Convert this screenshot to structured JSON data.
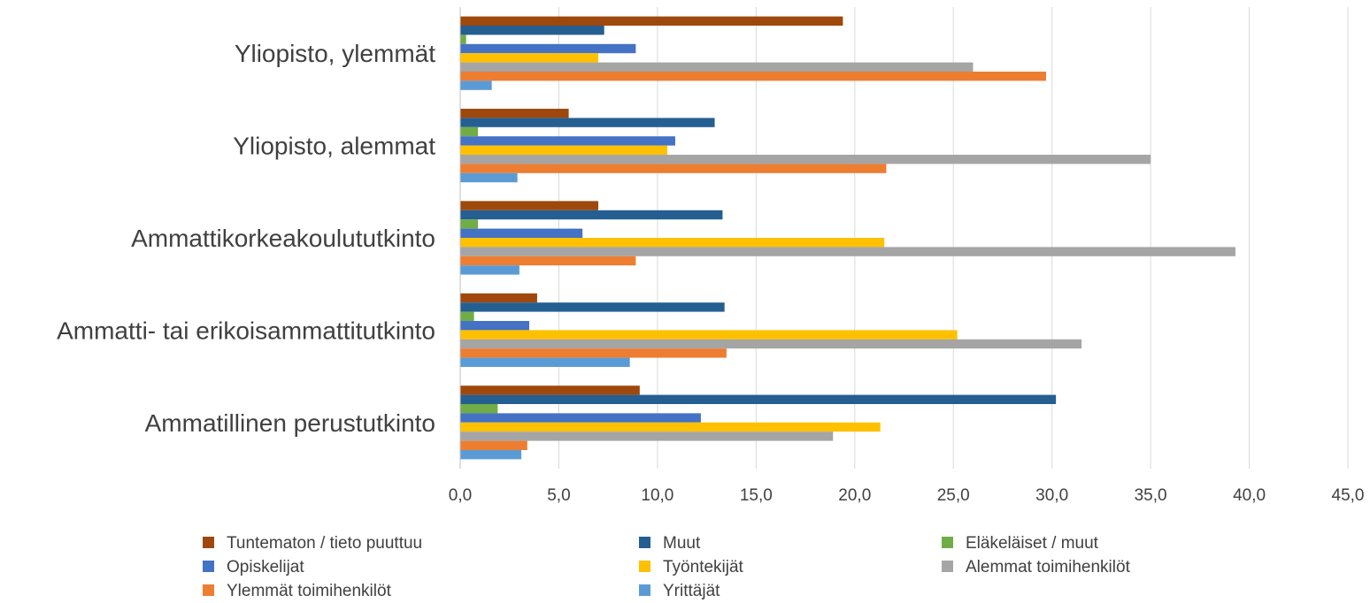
{
  "chart_data": {
    "type": "bar",
    "orientation": "horizontal",
    "title": "",
    "xlabel": "",
    "ylabel": "",
    "xlim": [
      0,
      45
    ],
    "x_ticks": [
      "0,0",
      "5,0",
      "10,0",
      "15,0",
      "20,0",
      "25,0",
      "30,0",
      "35,0",
      "40,0",
      "45,0"
    ],
    "grid": "vertical",
    "legend_placement": "bottom",
    "categories": [
      "Yliopisto, ylemmät",
      "Yliopisto, alemmat",
      "Ammattikorkeakoulututkinto",
      "Ammatti- tai erikoisammattitutkinto",
      "Ammatillinen perustutkinto"
    ],
    "series": [
      {
        "name": "Tuntematon / tieto puuttuu",
        "color": "#9E480E",
        "values": [
          19.4,
          5.5,
          7.0,
          3.9,
          9.1
        ]
      },
      {
        "name": "Muut",
        "color": "#255E91",
        "values": [
          7.3,
          12.9,
          13.3,
          13.4,
          30.2
        ]
      },
      {
        "name": "Eläkeläiset / muut",
        "color": "#70AD47",
        "values": [
          0.3,
          0.9,
          0.9,
          0.7,
          1.9
        ]
      },
      {
        "name": "Opiskelijat",
        "color": "#4472C4",
        "values": [
          8.9,
          10.9,
          6.2,
          3.5,
          12.2
        ]
      },
      {
        "name": "Työntekijät",
        "color": "#FFC000",
        "values": [
          7.0,
          10.5,
          21.5,
          25.2,
          21.3
        ]
      },
      {
        "name": "Alemmat toimihenkilöt",
        "color": "#A5A5A5",
        "values": [
          26.0,
          35.0,
          39.3,
          31.5,
          18.9
        ]
      },
      {
        "name": "Ylemmät toimihenkilöt",
        "color": "#ED7D31",
        "values": [
          29.7,
          21.6,
          8.9,
          13.5,
          3.4
        ]
      },
      {
        "name": "Yrittäjät",
        "color": "#5B9BD5",
        "values": [
          1.6,
          2.9,
          3.0,
          8.6,
          3.1
        ]
      }
    ]
  }
}
